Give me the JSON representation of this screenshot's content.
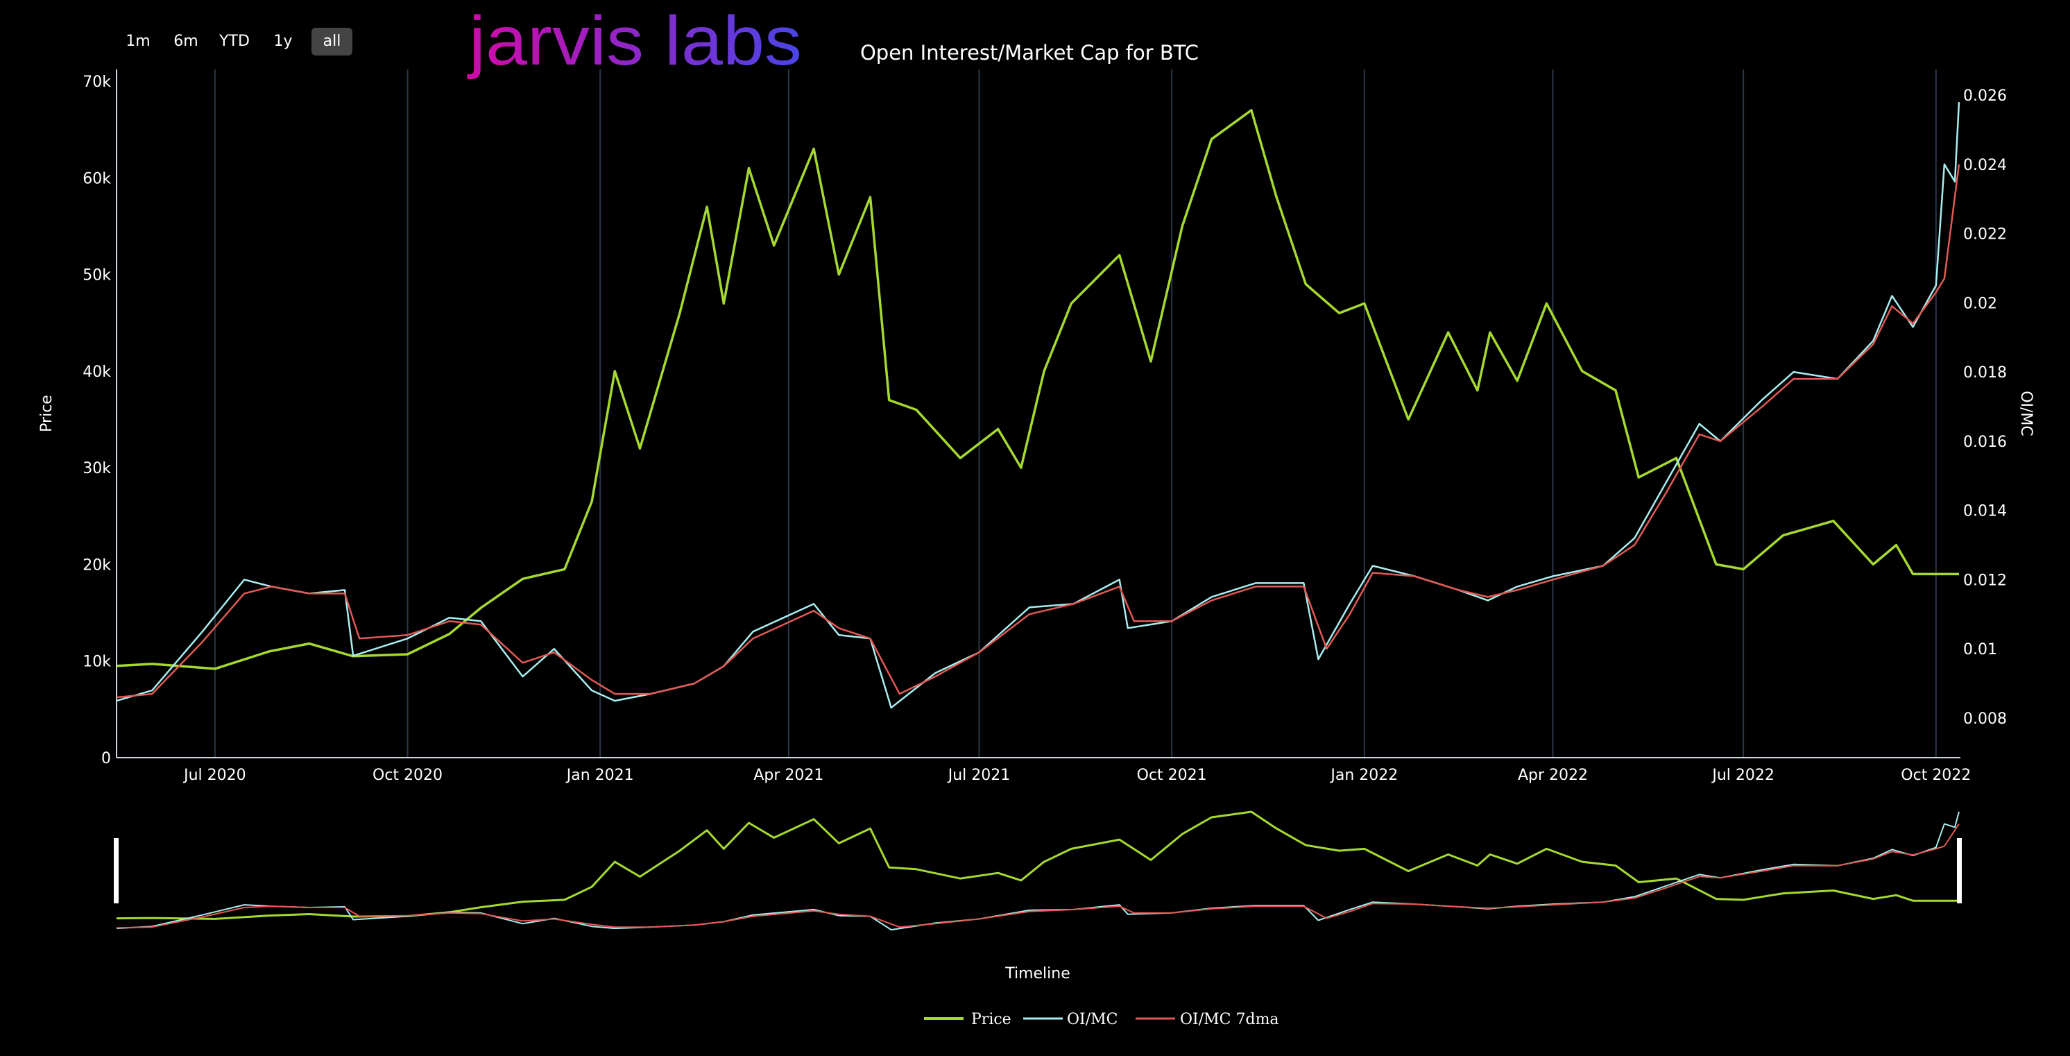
{
  "range_buttons": [
    {
      "label": "1m"
    },
    {
      "label": "6m"
    },
    {
      "label": "YTD"
    },
    {
      "label": "1y"
    },
    {
      "label": "all",
      "active": true
    }
  ],
  "logo_text": "jarvis labs",
  "colors": {
    "price": "#a6d92f",
    "oimc": "#a8eef0",
    "oimc7": "#e05a55",
    "grid": "#2c3648",
    "accent_start": "#d10aa8",
    "accent_end": "#4a45e6"
  },
  "chart_data": {
    "type": "line",
    "title": "Open Interest/Market Cap for BTC",
    "ylabel": "Price",
    "y2label": "OI/MC",
    "xlabel_navigator": "Timeline",
    "x_range": [
      "2020-05-15",
      "2022-10-12"
    ],
    "ylim": [
      0,
      70000
    ],
    "y2lim": [
      0.0065,
      0.0265
    ],
    "yticks": [
      {
        "v": 0,
        "label": "0"
      },
      {
        "v": 10000,
        "label": "10k"
      },
      {
        "v": 20000,
        "label": "20k"
      },
      {
        "v": 30000,
        "label": "30k"
      },
      {
        "v": 40000,
        "label": "40k"
      },
      {
        "v": 50000,
        "label": "50k"
      },
      {
        "v": 60000,
        "label": "60k"
      },
      {
        "v": 70000,
        "label": "70k"
      }
    ],
    "y2ticks": [
      {
        "v": 0.008,
        "label": "0.008"
      },
      {
        "v": 0.01,
        "label": "0.01"
      },
      {
        "v": 0.012,
        "label": "0.012"
      },
      {
        "v": 0.014,
        "label": "0.014"
      },
      {
        "v": 0.016,
        "label": "0.016"
      },
      {
        "v": 0.018,
        "label": "0.018"
      },
      {
        "v": 0.02,
        "label": "0.02"
      },
      {
        "v": 0.022,
        "label": "0.022"
      },
      {
        "v": 0.024,
        "label": "0.024"
      },
      {
        "v": 0.026,
        "label": "0.026"
      }
    ],
    "xticks": [
      {
        "d": "2020-07-01",
        "label": "Jul 2020"
      },
      {
        "d": "2020-10-01",
        "label": "Oct 2020"
      },
      {
        "d": "2021-01-01",
        "label": "Jan 2021"
      },
      {
        "d": "2021-04-01",
        "label": "Apr 2021"
      },
      {
        "d": "2021-07-01",
        "label": "Jul 2021"
      },
      {
        "d": "2021-10-01",
        "label": "Oct 2021"
      },
      {
        "d": "2022-01-01",
        "label": "Jan 2022"
      },
      {
        "d": "2022-04-01",
        "label": "Apr 2022"
      },
      {
        "d": "2022-07-01",
        "label": "Jul 2022"
      },
      {
        "d": "2022-10-01",
        "label": "Oct 2022"
      }
    ],
    "legend": [
      "Price",
      "OI/MC",
      "OI/MC 7dma"
    ],
    "legend_position": "bottom-center",
    "series": [
      {
        "name": "Price",
        "axis": "y",
        "points": [
          [
            "2020-05-15",
            9500
          ],
          [
            "2020-06-01",
            9700
          ],
          [
            "2020-07-01",
            9200
          ],
          [
            "2020-07-27",
            11000
          ],
          [
            "2020-08-15",
            11800
          ],
          [
            "2020-09-05",
            10500
          ],
          [
            "2020-10-01",
            10700
          ],
          [
            "2020-10-21",
            12800
          ],
          [
            "2020-11-05",
            15500
          ],
          [
            "2020-11-25",
            18500
          ],
          [
            "2020-12-15",
            19500
          ],
          [
            "2020-12-28",
            26500
          ],
          [
            "2021-01-08",
            40000
          ],
          [
            "2021-01-20",
            32000
          ],
          [
            "2021-02-08",
            46000
          ],
          [
            "2021-02-21",
            57000
          ],
          [
            "2021-03-01",
            47000
          ],
          [
            "2021-03-13",
            61000
          ],
          [
            "2021-03-25",
            53000
          ],
          [
            "2021-04-13",
            63000
          ],
          [
            "2021-04-25",
            50000
          ],
          [
            "2021-05-10",
            58000
          ],
          [
            "2021-05-19",
            37000
          ],
          [
            "2021-06-01",
            36000
          ],
          [
            "2021-06-22",
            31000
          ],
          [
            "2021-07-10",
            34000
          ],
          [
            "2021-07-21",
            30000
          ],
          [
            "2021-08-01",
            40000
          ],
          [
            "2021-08-14",
            47000
          ],
          [
            "2021-09-06",
            52000
          ],
          [
            "2021-09-21",
            41000
          ],
          [
            "2021-10-06",
            55000
          ],
          [
            "2021-10-20",
            64000
          ],
          [
            "2021-11-08",
            67000
          ],
          [
            "2021-11-20",
            58000
          ],
          [
            "2021-12-04",
            49000
          ],
          [
            "2021-12-20",
            46000
          ],
          [
            "2022-01-01",
            47000
          ],
          [
            "2022-01-22",
            35000
          ],
          [
            "2022-02-10",
            44000
          ],
          [
            "2022-02-24",
            38000
          ],
          [
            "2022-03-02",
            44000
          ],
          [
            "2022-03-15",
            39000
          ],
          [
            "2022-03-29",
            47000
          ],
          [
            "2022-04-15",
            40000
          ],
          [
            "2022-05-01",
            38000
          ],
          [
            "2022-05-12",
            29000
          ],
          [
            "2022-05-30",
            31000
          ],
          [
            "2022-06-18",
            20000
          ],
          [
            "2022-07-01",
            19500
          ],
          [
            "2022-07-20",
            23000
          ],
          [
            "2022-08-13",
            24500
          ],
          [
            "2022-09-01",
            20000
          ],
          [
            "2022-09-12",
            22000
          ],
          [
            "2022-09-20",
            19000
          ],
          [
            "2022-10-12",
            19000
          ]
        ]
      },
      {
        "name": "OI/MC",
        "axis": "y2",
        "points": [
          [
            "2020-05-15",
            0.0085
          ],
          [
            "2020-06-01",
            0.0088
          ],
          [
            "2020-06-25",
            0.0105
          ],
          [
            "2020-07-15",
            0.012
          ],
          [
            "2020-07-28",
            0.0118
          ],
          [
            "2020-08-15",
            0.0116
          ],
          [
            "2020-09-01",
            0.0117
          ],
          [
            "2020-09-05",
            0.0098
          ],
          [
            "2020-10-01",
            0.0103
          ],
          [
            "2020-10-21",
            0.0109
          ],
          [
            "2020-11-05",
            0.0108
          ],
          [
            "2020-11-25",
            0.0092
          ],
          [
            "2020-12-10",
            0.01
          ],
          [
            "2020-12-28",
            0.0088
          ],
          [
            "2021-01-08",
            0.0085
          ],
          [
            "2021-01-25",
            0.0087
          ],
          [
            "2021-02-15",
            0.009
          ],
          [
            "2021-03-01",
            0.0095
          ],
          [
            "2021-03-15",
            0.0105
          ],
          [
            "2021-04-13",
            0.0113
          ],
          [
            "2021-04-25",
            0.0104
          ],
          [
            "2021-05-10",
            0.0103
          ],
          [
            "2021-05-20",
            0.0083
          ],
          [
            "2021-06-10",
            0.0093
          ],
          [
            "2021-07-01",
            0.0099
          ],
          [
            "2021-07-25",
            0.0112
          ],
          [
            "2021-08-15",
            0.0113
          ],
          [
            "2021-09-06",
            0.012
          ],
          [
            "2021-09-10",
            0.0106
          ],
          [
            "2021-10-01",
            0.0108
          ],
          [
            "2021-10-20",
            0.0115
          ],
          [
            "2021-11-10",
            0.0119
          ],
          [
            "2021-12-03",
            0.0119
          ],
          [
            "2021-12-10",
            0.0097
          ],
          [
            "2021-12-25",
            0.0113
          ],
          [
            "2022-01-05",
            0.0124
          ],
          [
            "2022-01-25",
            0.0121
          ],
          [
            "2022-02-15",
            0.0117
          ],
          [
            "2022-03-01",
            0.0114
          ],
          [
            "2022-03-15",
            0.0118
          ],
          [
            "2022-04-01",
            0.0121
          ],
          [
            "2022-04-25",
            0.0124
          ],
          [
            "2022-05-10",
            0.0132
          ],
          [
            "2022-05-25",
            0.0148
          ],
          [
            "2022-06-10",
            0.0165
          ],
          [
            "2022-06-20",
            0.016
          ],
          [
            "2022-07-10",
            0.0172
          ],
          [
            "2022-07-25",
            0.018
          ],
          [
            "2022-08-15",
            0.0178
          ],
          [
            "2022-09-01",
            0.0189
          ],
          [
            "2022-09-10",
            0.0202
          ],
          [
            "2022-09-20",
            0.0193
          ],
          [
            "2022-10-01",
            0.0205
          ],
          [
            "2022-10-05",
            0.024
          ],
          [
            "2022-10-10",
            0.0235
          ],
          [
            "2022-10-12",
            0.0258
          ]
        ]
      },
      {
        "name": "OI/MC 7dma",
        "axis": "y2",
        "points": [
          [
            "2020-05-15",
            0.0086
          ],
          [
            "2020-06-01",
            0.0087
          ],
          [
            "2020-06-25",
            0.0102
          ],
          [
            "2020-07-15",
            0.0116
          ],
          [
            "2020-07-28",
            0.0118
          ],
          [
            "2020-08-15",
            0.0116
          ],
          [
            "2020-09-01",
            0.0116
          ],
          [
            "2020-09-08",
            0.0103
          ],
          [
            "2020-10-01",
            0.0104
          ],
          [
            "2020-10-21",
            0.0108
          ],
          [
            "2020-11-05",
            0.0107
          ],
          [
            "2020-11-25",
            0.0096
          ],
          [
            "2020-12-10",
            0.0099
          ],
          [
            "2020-12-28",
            0.0091
          ],
          [
            "2021-01-08",
            0.0087
          ],
          [
            "2021-01-25",
            0.0087
          ],
          [
            "2021-02-15",
            0.009
          ],
          [
            "2021-03-01",
            0.0095
          ],
          [
            "2021-03-15",
            0.0103
          ],
          [
            "2021-04-13",
            0.0111
          ],
          [
            "2021-04-25",
            0.0106
          ],
          [
            "2021-05-10",
            0.0103
          ],
          [
            "2021-05-24",
            0.0087
          ],
          [
            "2021-06-10",
            0.0092
          ],
          [
            "2021-07-01",
            0.0099
          ],
          [
            "2021-07-25",
            0.011
          ],
          [
            "2021-08-15",
            0.0113
          ],
          [
            "2021-09-06",
            0.0118
          ],
          [
            "2021-09-13",
            0.0108
          ],
          [
            "2021-10-01",
            0.0108
          ],
          [
            "2021-10-20",
            0.0114
          ],
          [
            "2021-11-10",
            0.0118
          ],
          [
            "2021-12-03",
            0.0118
          ],
          [
            "2021-12-14",
            0.01
          ],
          [
            "2021-12-25",
            0.011
          ],
          [
            "2022-01-05",
            0.0122
          ],
          [
            "2022-01-25",
            0.0121
          ],
          [
            "2022-02-15",
            0.0117
          ],
          [
            "2022-03-01",
            0.0115
          ],
          [
            "2022-03-15",
            0.0117
          ],
          [
            "2022-04-01",
            0.012
          ],
          [
            "2022-04-25",
            0.0124
          ],
          [
            "2022-05-10",
            0.013
          ],
          [
            "2022-05-25",
            0.0145
          ],
          [
            "2022-06-10",
            0.0162
          ],
          [
            "2022-06-20",
            0.016
          ],
          [
            "2022-07-10",
            0.017
          ],
          [
            "2022-07-25",
            0.0178
          ],
          [
            "2022-08-15",
            0.0178
          ],
          [
            "2022-09-01",
            0.0188
          ],
          [
            "2022-09-10",
            0.0199
          ],
          [
            "2022-09-20",
            0.0194
          ],
          [
            "2022-10-01",
            0.0203
          ],
          [
            "2022-10-05",
            0.0207
          ],
          [
            "2022-10-12",
            0.024
          ]
        ]
      }
    ]
  }
}
